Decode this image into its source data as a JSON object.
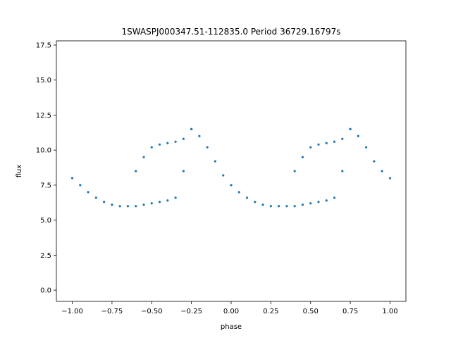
{
  "chart_data": {
    "type": "scatter",
    "title": "1SWASPJ000347.51-112835.0 Period 36729.16797s",
    "xlabel": "phase",
    "ylabel": "flux",
    "xlim": [
      -1.1,
      1.1
    ],
    "ylim": [
      -0.8,
      17.8
    ],
    "xticks": [
      -1.0,
      -0.75,
      -0.5,
      -0.25,
      0.0,
      0.25,
      0.5,
      0.75,
      1.0
    ],
    "xtick_labels": [
      "−1.00",
      "−0.75",
      "−0.50",
      "−0.25",
      "0.00",
      "0.25",
      "0.50",
      "0.75",
      "1.00"
    ],
    "yticks": [
      0.0,
      2.5,
      5.0,
      7.5,
      10.0,
      12.5,
      15.0,
      17.5
    ],
    "ytick_labels": [
      "0.0",
      "2.5",
      "5.0",
      "7.5",
      "10.0",
      "12.5",
      "15.0",
      "17.5"
    ],
    "grid": false,
    "point_color": "#1f77b4",
    "series": [
      {
        "x": [
          -1.0,
          -0.95,
          -0.9,
          -0.85,
          -0.8,
          -0.75,
          -0.7,
          -0.65,
          -0.6,
          -0.55,
          -0.5,
          -0.45,
          -0.4,
          -0.35,
          -0.3,
          -0.25,
          -0.2,
          -0.15,
          -0.1,
          -0.05,
          0.0,
          0.05,
          0.1,
          0.15,
          0.2,
          0.25,
          0.3,
          0.35,
          0.4,
          0.45,
          0.5,
          0.55,
          0.6,
          0.65,
          0.7,
          0.75,
          0.8,
          0.85,
          0.9,
          0.95,
          1.0
        ],
        "y": [
          8.0,
          7.5,
          7.0,
          6.6,
          6.3,
          6.1,
          6.0,
          6.0,
          6.0,
          6.1,
          6.2,
          6.3,
          6.4,
          6.6,
          8.5,
          11.5,
          11.0,
          10.2,
          9.2,
          8.2,
          7.5,
          7.0,
          6.6,
          6.3,
          6.1,
          6.0,
          6.0,
          6.0,
          6.0,
          6.1,
          6.2,
          6.3,
          6.4,
          6.6,
          8.5,
          11.5,
          11.0,
          10.2,
          9.2,
          8.5,
          8.0
        ]
      },
      {
        "x": [
          -0.6,
          -0.55,
          -0.5,
          -0.45,
          -0.4,
          -0.35,
          -0.3,
          -0.25,
          0.4,
          0.45,
          0.5,
          0.55,
          0.6,
          0.65,
          0.7,
          0.75
        ],
        "y": [
          8.5,
          9.5,
          10.2,
          10.4,
          10.5,
          10.6,
          10.8,
          11.5,
          8.5,
          9.5,
          10.2,
          10.4,
          10.5,
          10.6,
          10.8,
          11.5
        ]
      }
    ]
  }
}
